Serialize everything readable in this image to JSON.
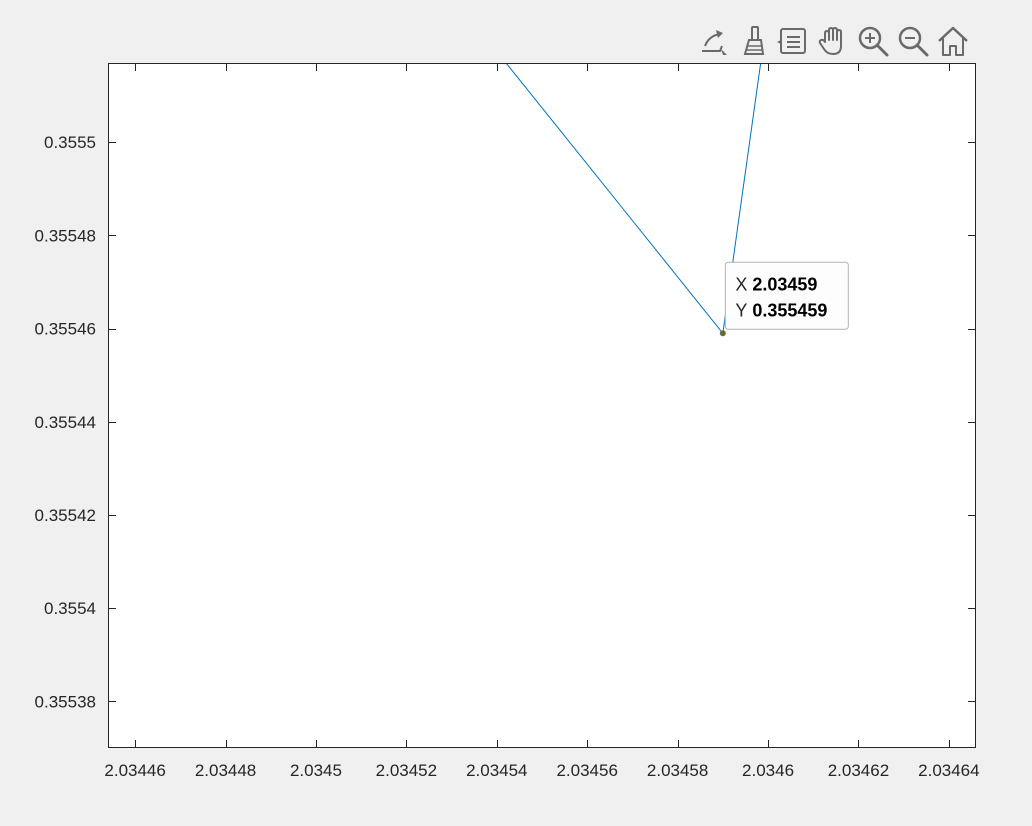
{
  "toolbar": {
    "tools": [
      {
        "name": "edit-plot-tool",
        "icon": "edit-plot-icon"
      },
      {
        "name": "brush-tool",
        "icon": "brush-icon"
      },
      {
        "name": "data-tips-tool",
        "icon": "data-tips-icon"
      },
      {
        "name": "pan-tool",
        "icon": "pan-hand-icon"
      },
      {
        "name": "zoom-in-tool",
        "icon": "zoom-in-icon"
      },
      {
        "name": "zoom-out-tool",
        "icon": "zoom-out-icon"
      },
      {
        "name": "restore-view-tool",
        "icon": "home-icon"
      }
    ]
  },
  "colors": {
    "line": "#0072bd",
    "axes_box": "#262626",
    "marker": "#6b6b3a",
    "figure_bg": "#f0f0f0",
    "axes_bg": "#ffffff"
  },
  "chart_data": {
    "type": "line",
    "title": "",
    "xlabel": "",
    "ylabel": "",
    "xlim": [
      2.034454,
      2.034646
    ],
    "ylim": [
      0.35537,
      0.355517
    ],
    "xticks": [
      2.03446,
      2.03448,
      2.0345,
      2.03452,
      2.03454,
      2.03456,
      2.03458,
      2.0346,
      2.03462,
      2.03464
    ],
    "xtick_labels": [
      "2.03446",
      "2.03448",
      "2.0345",
      "2.03452",
      "2.03454",
      "2.03456",
      "2.03458",
      "2.0346",
      "2.03462",
      "2.03464"
    ],
    "yticks": [
      0.35538,
      0.3554,
      0.35542,
      0.35544,
      0.35546,
      0.35548,
      0.3555
    ],
    "ytick_labels": [
      "0.35538",
      "0.3554",
      "0.35542",
      "0.35544",
      "0.35546",
      "0.35548",
      "0.3555"
    ],
    "grid": false,
    "series": [
      {
        "x": [
          2.034528,
          2.03459,
          2.034604
        ],
        "y": [
          0.355534,
          0.355459,
          0.355556
        ]
      }
    ],
    "datatip": {
      "x_label": "X",
      "x_value": "2.03459",
      "y_label": "Y",
      "y_value": "0.355459",
      "point": {
        "x": 2.03459,
        "y": 0.355459
      }
    }
  }
}
